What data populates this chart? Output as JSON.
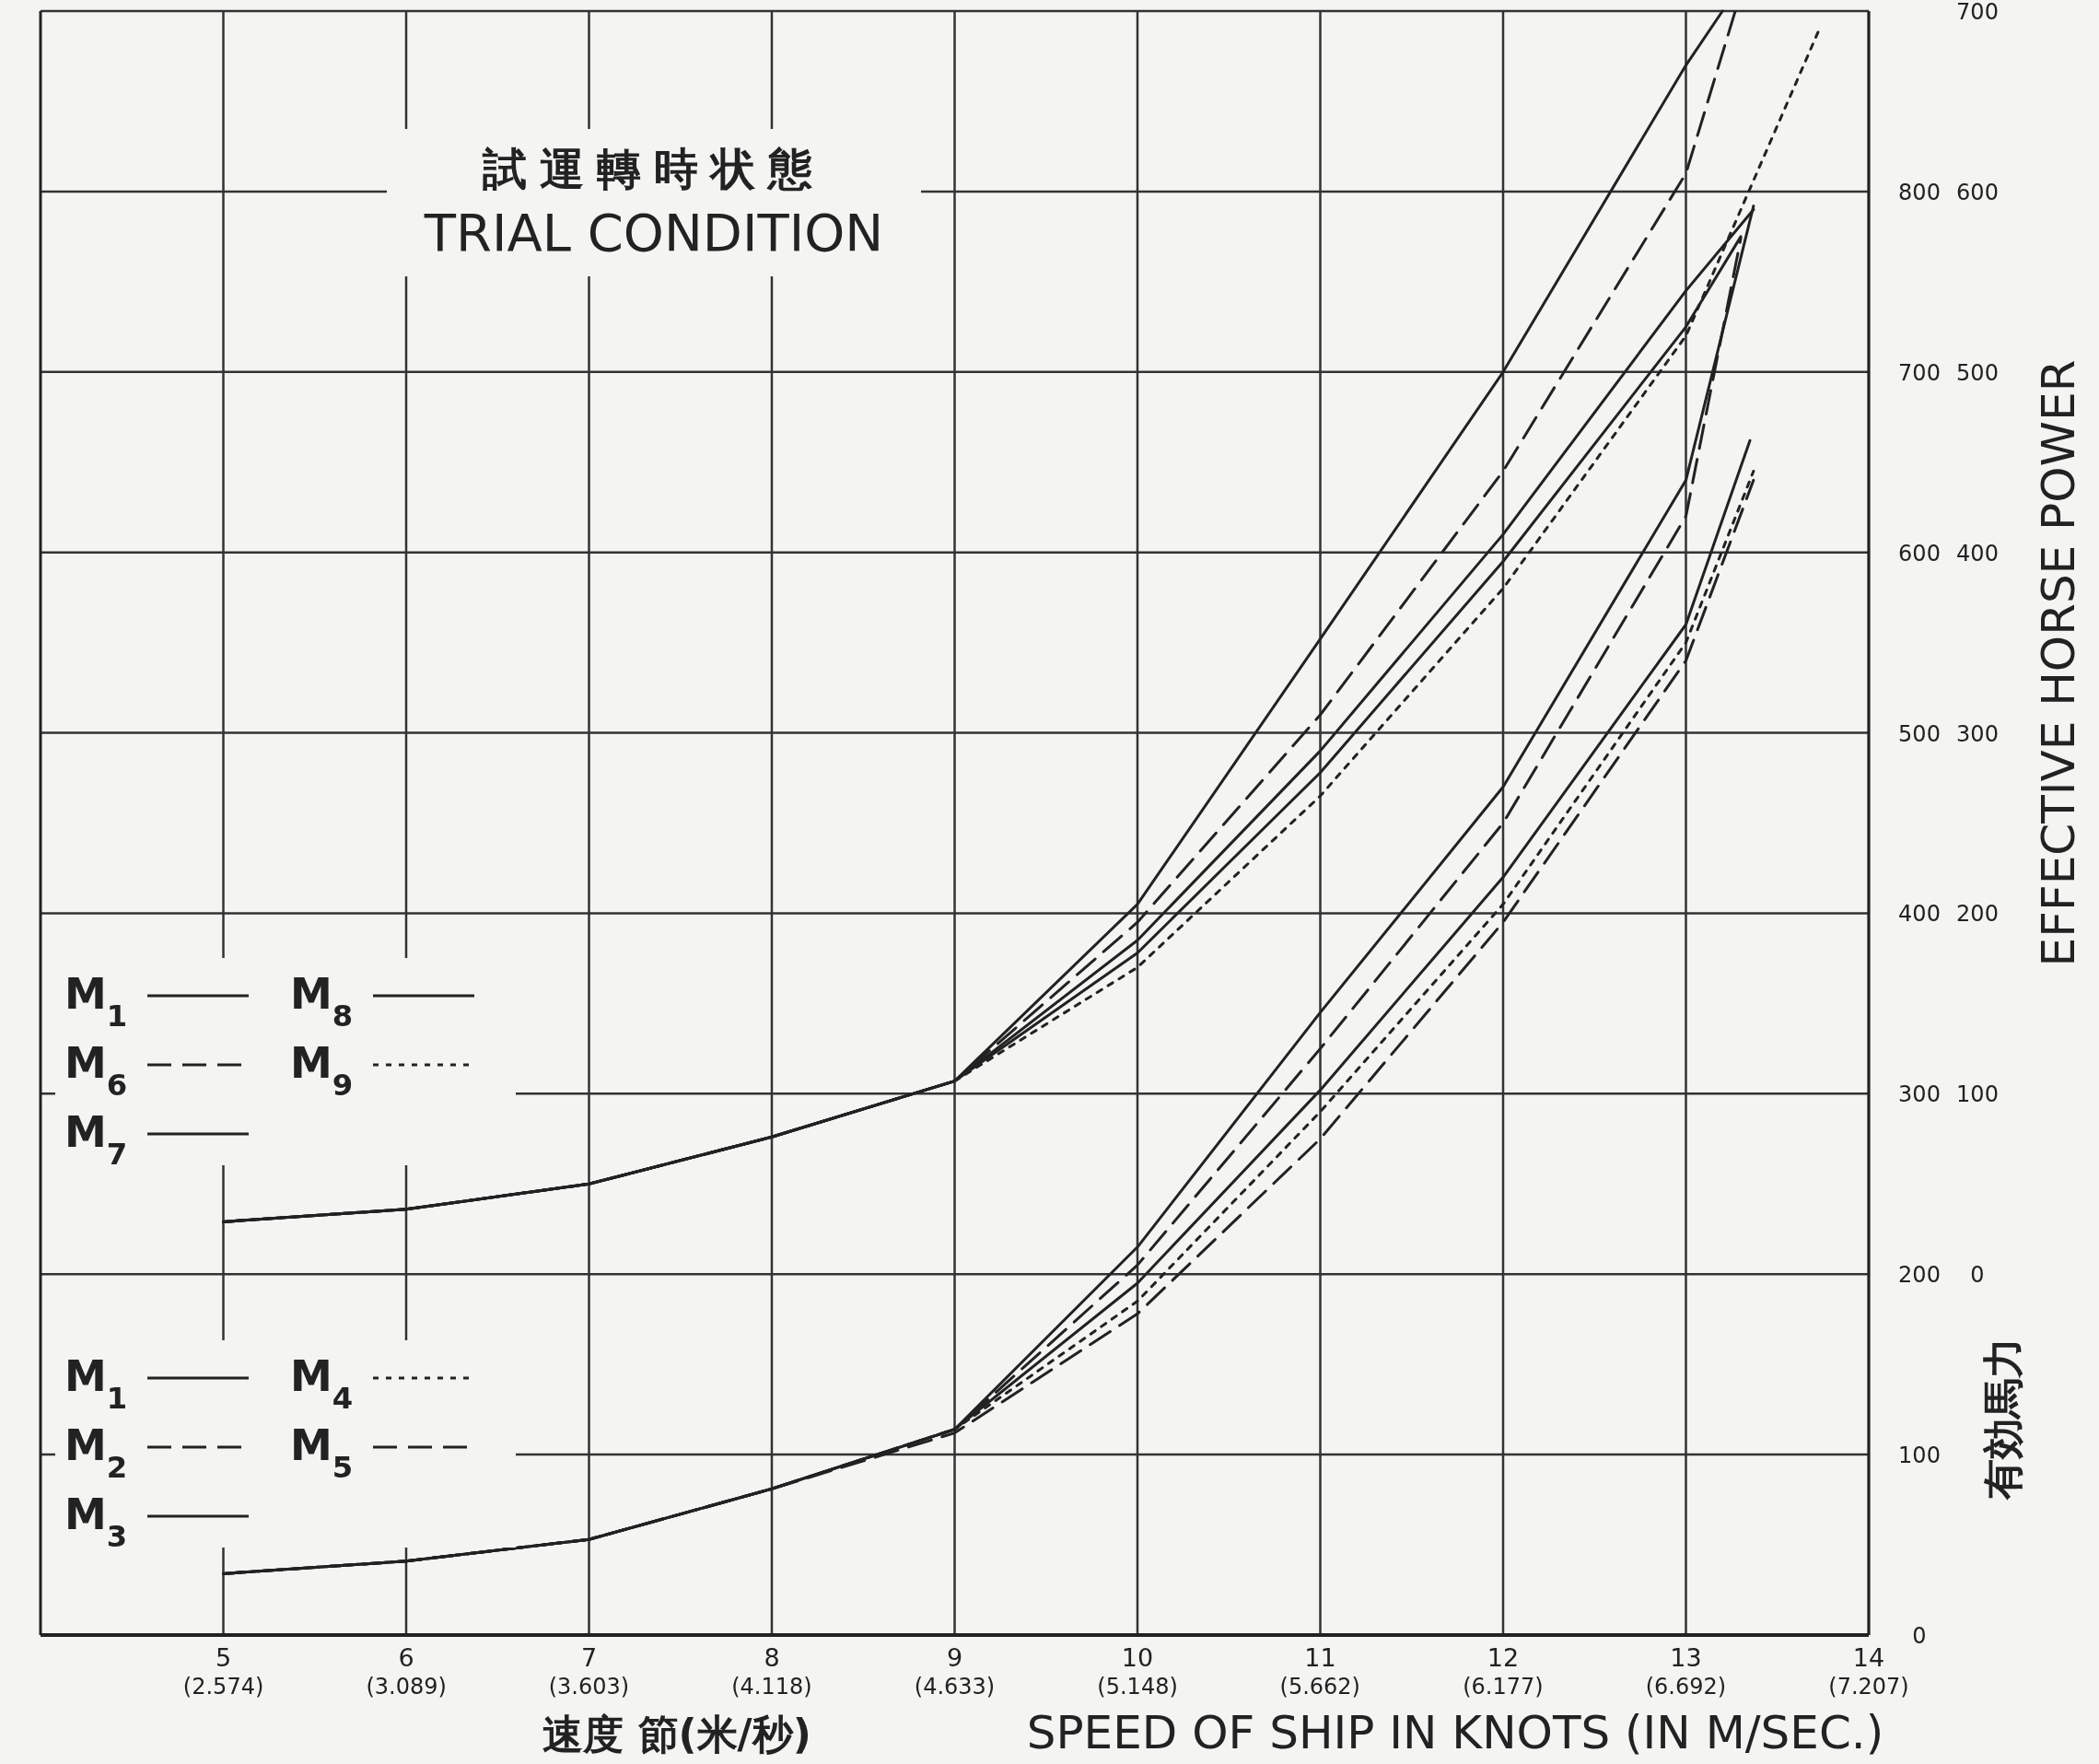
{
  "chart_data": {
    "type": "line",
    "title": "試運轉時状態",
    "subtitle": "TRIAL CONDITION",
    "xlabel": "SPEED OF SHIP IN KNOTS (IN M/SEC.)",
    "y2label": "EFFECTIVE HORSE POWER",
    "annotations": [
      "速度 節(米/秒)",
      "有効馬力"
    ],
    "xlim": [
      4,
      14
    ],
    "xticks": [
      5,
      6,
      7,
      8,
      9,
      10,
      11,
      12,
      13,
      14
    ],
    "x2lim": [
      2.059,
      7.207
    ],
    "x2ticks": [
      {
        "value": 2.574,
        "label": "(2.574)"
      },
      {
        "value": 3.089,
        "label": "(3.089)"
      },
      {
        "value": 3.603,
        "label": "(3.603)"
      },
      {
        "value": 4.118,
        "label": "(4.118)"
      },
      {
        "value": 4.633,
        "label": "(4.633)"
      },
      {
        "value": 5.148,
        "label": "(5.148)"
      },
      {
        "value": 5.662,
        "label": "(5.662)"
      },
      {
        "value": 6.177,
        "label": "(6.177)"
      },
      {
        "value": 6.692,
        "label": "(6.692)"
      },
      {
        "value": 7.207,
        "label": "(7.207)"
      }
    ],
    "ylim": [
      0,
      900
    ],
    "yticks": [
      0,
      100,
      200,
      300,
      400,
      500,
      600,
      700,
      800
    ],
    "y2lim": [
      -200,
      700
    ],
    "y2ticks": [
      0,
      100,
      200,
      300,
      400,
      500,
      600,
      700
    ],
    "grid": true,
    "legend": "left",
    "marker": "none",
    "series": [
      {
        "name": "M$_{1}$",
        "color": "#222222",
        "line_style": "solid",
        "axis": "y2",
        "x": [
          5,
          6,
          7,
          8,
          9,
          10,
          11,
          12,
          13,
          13.2
        ],
        "values": [
          29,
          36,
          50,
          76,
          107,
          205,
          352,
          500,
          670,
          700
        ]
      },
      {
        "name": "M$_{6}$",
        "color": "#222222",
        "line_style": "dashed",
        "axis": "y2",
        "x": [
          5,
          6,
          7,
          8,
          9,
          10,
          11,
          12,
          13,
          13.27
        ],
        "values": [
          29,
          36,
          50,
          76,
          107,
          195,
          310,
          445,
          610,
          700
        ]
      },
      {
        "name": "M$_{7}$",
        "color": "#222222",
        "line_style": "solid",
        "axis": "y2",
        "x": [
          5,
          6,
          7,
          8,
          9,
          10,
          11,
          12,
          13,
          13.37
        ],
        "values": [
          29,
          36,
          50,
          76,
          107,
          185,
          290,
          410,
          545,
          590
        ]
      },
      {
        "name": "M$_{8}$",
        "color": "#222222",
        "line_style": "solid",
        "axis": "y2",
        "x": [
          5,
          6,
          7,
          8,
          9,
          10,
          11,
          12,
          13,
          13.3
        ],
        "values": [
          29,
          36,
          50,
          76,
          107,
          178,
          278,
          395,
          525,
          575
        ]
      },
      {
        "name": "M$_{9}$",
        "color": "#222222",
        "line_style": "dotted",
        "axis": "y2",
        "x": [
          5,
          6,
          7,
          8,
          9,
          10,
          11,
          12,
          13,
          13.73
        ],
        "values": [
          29,
          36,
          50,
          76,
          107,
          170,
          265,
          380,
          520,
          690
        ]
      },
      {
        "name": "M$_{1}$",
        "color": "#222222",
        "line_style": "solid",
        "x": [
          5,
          6,
          7,
          8,
          9,
          10,
          11,
          12,
          13,
          13.37
        ],
        "values": [
          34,
          41,
          53,
          81,
          114,
          215,
          345,
          470,
          640,
          792
        ]
      },
      {
        "name": "M$_{2}$",
        "color": "#222222",
        "line_style": "dashed",
        "x": [
          5,
          6,
          7,
          8,
          9,
          10,
          11,
          12,
          13,
          13.3
        ],
        "values": [
          34,
          41,
          53,
          81,
          114,
          205,
          325,
          450,
          620,
          774
        ]
      },
      {
        "name": "M$_{3}$",
        "color": "#222222",
        "line_style": "solid",
        "x": [
          5,
          6,
          7,
          8,
          9,
          10,
          11,
          12,
          13,
          13.35
        ],
        "values": [
          34,
          41,
          53,
          81,
          114,
          195,
          302,
          420,
          560,
          662
        ]
      },
      {
        "name": "M$_{4}$",
        "color": "#222222",
        "line_style": "dotted",
        "x": [
          5,
          6,
          7,
          8,
          9,
          10,
          11,
          12,
          13,
          13.37
        ],
        "values": [
          34,
          41,
          53,
          81,
          114,
          185,
          290,
          405,
          550,
          645
        ]
      },
      {
        "name": "M$_{5}$",
        "color": "#222222",
        "line_style": "dashed",
        "x": [
          5,
          6,
          7,
          8,
          9,
          10,
          11,
          12,
          13,
          13.37
        ],
        "values": [
          34,
          41,
          53,
          81,
          112,
          178,
          275,
          395,
          540,
          640
        ]
      }
    ]
  }
}
